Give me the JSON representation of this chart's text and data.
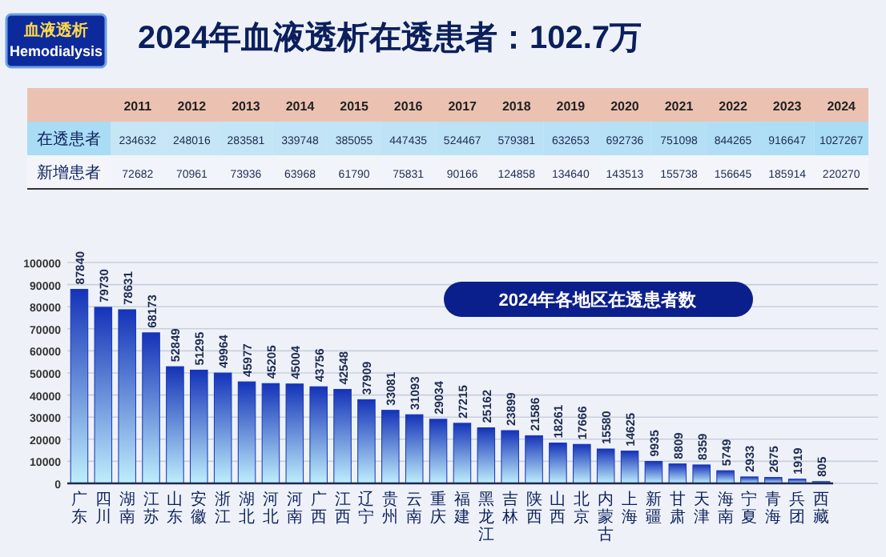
{
  "chart_data": [
    {
      "type": "heatmap",
      "title": "2024年血液透析在透患者：102.7万",
      "annotations": [
        "血液透析",
        "Hemodialysis"
      ],
      "categories": [
        "2011",
        "2012",
        "2013",
        "2014",
        "2015",
        "2016",
        "2017",
        "2018",
        "2019",
        "2020",
        "2021",
        "2022",
        "2023",
        "2024"
      ],
      "y_categories": [
        "在透患者",
        "新增患者"
      ],
      "cells": [
        [
          234632,
          248016,
          283581,
          339748,
          385055,
          447435,
          524467,
          579381,
          632653,
          692736,
          751098,
          844265,
          916647,
          1027267
        ],
        [
          72682,
          70961,
          73936,
          63968,
          61790,
          75831,
          90166,
          124858,
          134640,
          143513,
          155738,
          156645,
          185914,
          220270
        ]
      ],
      "cell_labels": [
        [
          "234632",
          "248016",
          "283581",
          "339748",
          "385055",
          "447435",
          "524467",
          "579381",
          "632653",
          "692736",
          "751098",
          "844265",
          "916647",
          "1027267"
        ],
        [
          "72682",
          "70961",
          "73936",
          "63968",
          "61790",
          "75831",
          "90166",
          "124858",
          "134640",
          "143513",
          "155738",
          "156645",
          "185914",
          "220270"
        ]
      ]
    },
    {
      "type": "bar",
      "title": "2024年各地区在透患者数",
      "categories": [
        "广东",
        "四川",
        "湖南",
        "江苏",
        "山东",
        "安徽",
        "浙江",
        "湖北",
        "河北",
        "河南",
        "广西",
        "江西",
        "辽宁",
        "贵州",
        "云南",
        "重庆",
        "福建",
        "黑龙江",
        "吉林",
        "陕西",
        "山西",
        "北京",
        "内蒙古",
        "上海",
        "新疆",
        "甘肃",
        "天津",
        "海南",
        "宁夏",
        "青海",
        "兵团",
        "西藏"
      ],
      "values": [
        87840,
        79730,
        78631,
        68173,
        52849,
        51295,
        49964,
        45977,
        45205,
        45004,
        43756,
        42548,
        37909,
        33081,
        31093,
        29034,
        27215,
        25162,
        23899,
        21586,
        18261,
        17666,
        15580,
        14625,
        9935,
        8809,
        8359,
        5749,
        2933,
        2675,
        1919,
        805
      ],
      "color": "#1533b8",
      "ylim": [
        0,
        100000
      ],
      "yticks": [
        0,
        10000,
        20000,
        30000,
        40000,
        50000,
        60000,
        70000,
        80000,
        90000,
        100000
      ],
      "grid": "y",
      "data_labels": true
    }
  ]
}
